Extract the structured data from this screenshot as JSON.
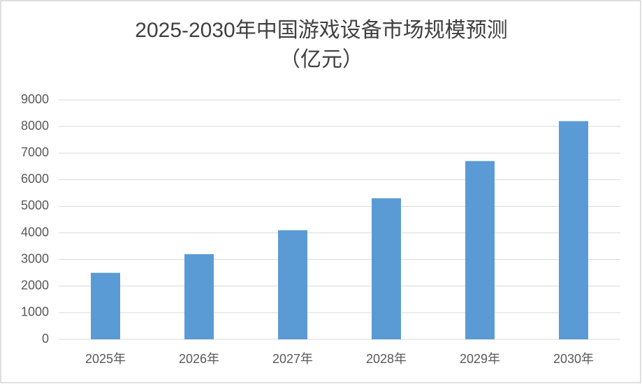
{
  "chart_data": {
    "type": "bar",
    "title": "2025-2030年中国游戏设备市场规模预测",
    "subtitle": "（亿元）",
    "categories": [
      "2025年",
      "2026年",
      "2027年",
      "2028年",
      "2029年",
      "2030年"
    ],
    "values": [
      2500,
      3200,
      4100,
      5300,
      6700,
      8200
    ],
    "color": "#5b9bd5",
    "ylim": [
      0,
      9000
    ],
    "yticks": [
      0,
      1000,
      2000,
      3000,
      4000,
      5000,
      6000,
      7000,
      8000,
      9000
    ],
    "grid": true
  }
}
